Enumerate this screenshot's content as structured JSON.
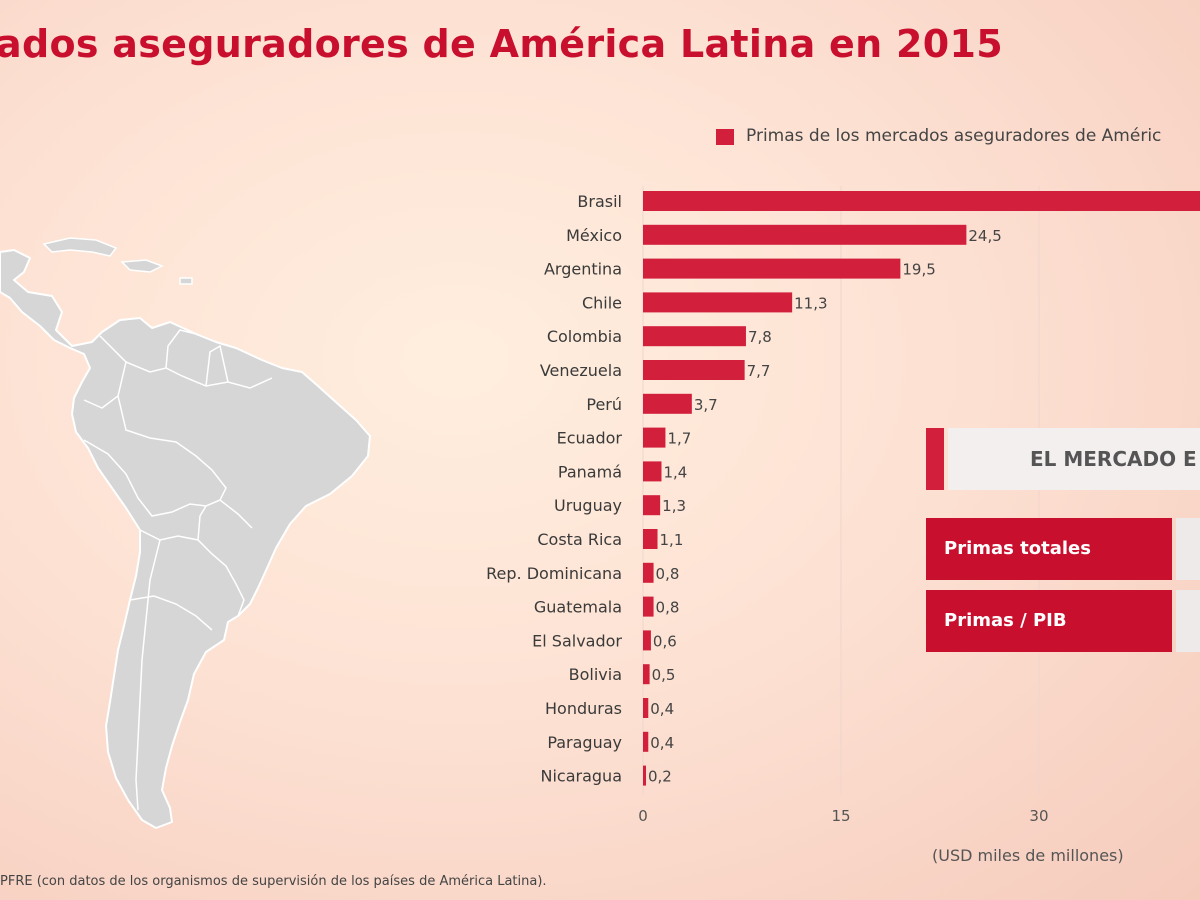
{
  "page": {
    "title": "ados aseguradores de América Latina en 2015",
    "source": "PFRE (con datos de los organismos de supervisión de los países de América Latina).",
    "unit": "(USD miles de millones)"
  },
  "panel": {
    "header": "EL MERCADO E",
    "rows": [
      "Primas totales",
      "Primas / PIB"
    ]
  },
  "colors": {
    "bar": "#d21f3c",
    "accent": "#c8102e",
    "map_land": "#d6d6d6",
    "map_border": "#ffffff"
  },
  "map": {
    "icon": "south-america-map"
  },
  "chart_data": {
    "type": "bar",
    "orientation": "horizontal",
    "legend": "Primas de los mercados aseguradores de Améric",
    "legend_position": "top",
    "categories": [
      "Brasil",
      "México",
      "Argentina",
      "Chile",
      "Colombia",
      "Venezuela",
      "Perú",
      "Ecuador",
      "Panamá",
      "Uruguay",
      "Costa Rica",
      "Rep. Dominicana",
      "Guatemala",
      "El Salvador",
      "Bolivia",
      "Honduras",
      "Paraguay",
      "Nicaragua"
    ],
    "values": [
      null,
      24.5,
      19.5,
      11.3,
      7.8,
      7.7,
      3.7,
      1.7,
      1.4,
      1.3,
      1.1,
      0.8,
      0.8,
      0.6,
      0.5,
      0.4,
      0.4,
      0.2
    ],
    "value_labels": [
      "",
      "24,5",
      "19,5",
      "11,3",
      "7,8",
      "7,7",
      "3,7",
      "1,7",
      "1,4",
      "1,3",
      "1,1",
      "0,8",
      "0,8",
      "0,6",
      "0,5",
      "0,4",
      "0,4",
      "0,2"
    ],
    "xticks": [
      0,
      15,
      30
    ],
    "xtick_labels": [
      "0",
      "15",
      "30"
    ],
    "xlim": [
      0,
      42.2
    ],
    "grid": "vertical"
  }
}
